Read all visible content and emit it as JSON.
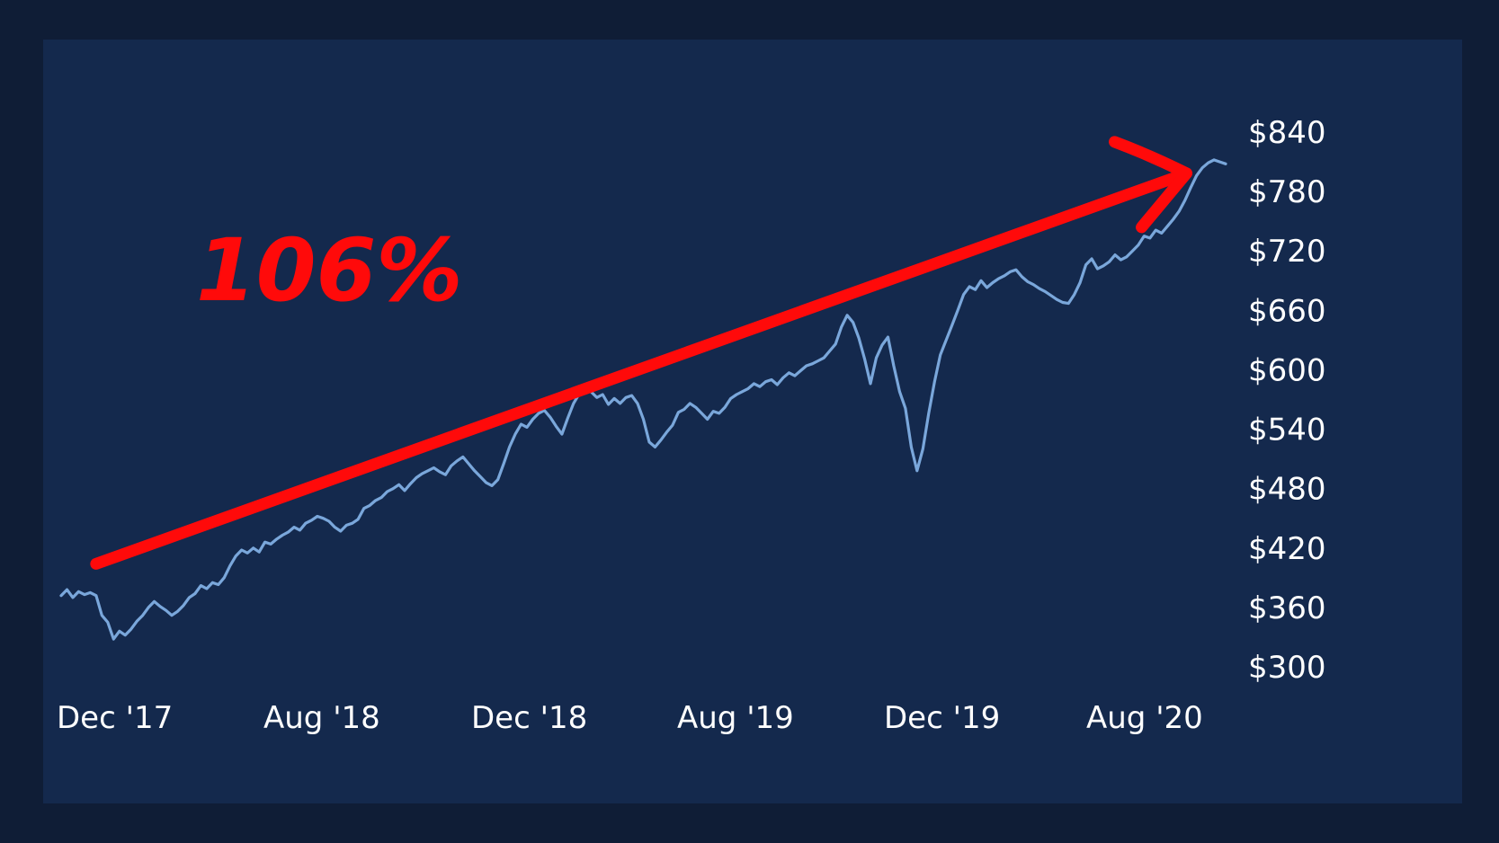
{
  "chart_data": {
    "type": "line",
    "title": "",
    "xlabel": "",
    "ylabel": "",
    "ylim": [
      300,
      840
    ],
    "y_ticks": [
      "$300",
      "$360",
      "$420",
      "$480",
      "$540",
      "$600",
      "$660",
      "$720",
      "$780",
      "$840"
    ],
    "y_tick_values": [
      300,
      360,
      420,
      480,
      540,
      600,
      660,
      720,
      780,
      840
    ],
    "x_ticks": [
      "Dec '17",
      "Aug '18",
      "Dec '18",
      "Aug '19",
      "Dec '19",
      "Aug '20"
    ],
    "grid": false,
    "legend": "none",
    "series": [
      {
        "color": "#7aa7db",
        "x_range": [
          "2017-12",
          "2020-10"
        ],
        "values": [
          372,
          378,
          370,
          376,
          373,
          375,
          372,
          352,
          345,
          328,
          336,
          332,
          338,
          346,
          352,
          360,
          366,
          361,
          357,
          352,
          356,
          362,
          370,
          374,
          382,
          379,
          385,
          383,
          390,
          402,
          412,
          418,
          415,
          420,
          416,
          426,
          424,
          429,
          433,
          436,
          441,
          438,
          445,
          448,
          452,
          450,
          447,
          441,
          437,
          443,
          445,
          449,
          460,
          463,
          468,
          471,
          477,
          480,
          484,
          478,
          485,
          491,
          495,
          498,
          501,
          497,
          494,
          503,
          508,
          512,
          505,
          498,
          492,
          486,
          483,
          489,
          505,
          522,
          535,
          545,
          542,
          550,
          556,
          559,
          552,
          543,
          535,
          551,
          566,
          576,
          581,
          578,
          572,
          575,
          565,
          571,
          566,
          572,
          574,
          566,
          550,
          527,
          522,
          529,
          537,
          544,
          557,
          560,
          566,
          562,
          556,
          550,
          558,
          556,
          562,
          571,
          575,
          578,
          581,
          586,
          583,
          588,
          590,
          585,
          592,
          597,
          594,
          599,
          604,
          606,
          609,
          612,
          619,
          626,
          643,
          655,
          648,
          632,
          611,
          586,
          612,
          625,
          633,
          604,
          578,
          561,
          522,
          498,
          520,
          556,
          588,
          615,
          630,
          645,
          660,
          676,
          684,
          681,
          690,
          683,
          688,
          692,
          695,
          699,
          701,
          694,
          689,
          686,
          682,
          679,
          675,
          671,
          668,
          667,
          676,
          688,
          706,
          712,
          702,
          705,
          709,
          716,
          711,
          714,
          720,
          726,
          735,
          733,
          741,
          738,
          745,
          752,
          760,
          771,
          784,
          796,
          804,
          809,
          812,
          810,
          808
        ]
      }
    ],
    "annotations": [
      {
        "type": "arrow",
        "color": "#ff0a0a",
        "from": {
          "x_index": 6,
          "y": 404
        },
        "to": {
          "x_index": 199,
          "y": 812
        }
      },
      {
        "type": "text",
        "text": "106%",
        "color": "#ff0a0a"
      }
    ]
  }
}
